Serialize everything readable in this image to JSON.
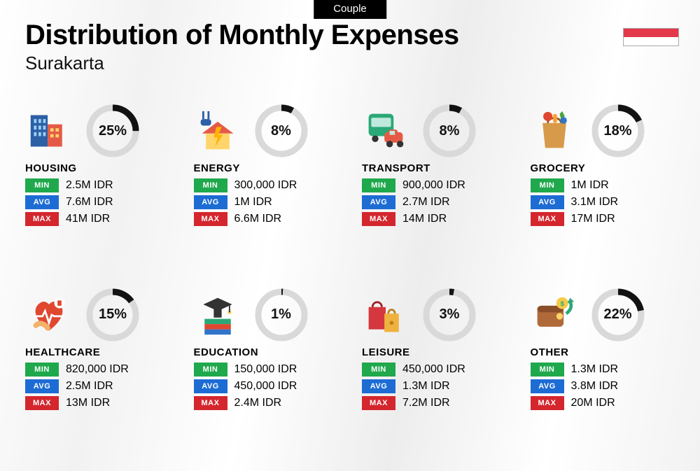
{
  "badge": "Couple",
  "title": "Distribution of Monthly Expenses",
  "subtitle": "Surakarta",
  "flag_colors": {
    "top": "#e3394a",
    "bottom": "#ffffff"
  },
  "tag_labels": {
    "min": "MIN",
    "avg": "AVG",
    "max": "MAX"
  },
  "tag_colors": {
    "min": "#1fa84c",
    "avg": "#1c6cd4",
    "max": "#d4262d"
  },
  "donut": {
    "track_color": "#d9d9d9",
    "fill_color": "#121212",
    "stroke_width": 9
  },
  "categories": [
    {
      "key": "housing",
      "name": "HOUSING",
      "percent": 25,
      "percent_label": "25%",
      "min": "2.5M IDR",
      "avg": "7.6M IDR",
      "max": "41M IDR"
    },
    {
      "key": "energy",
      "name": "ENERGY",
      "percent": 8,
      "percent_label": "8%",
      "min": "300,000 IDR",
      "avg": "1M IDR",
      "max": "6.6M IDR"
    },
    {
      "key": "transport",
      "name": "TRANSPORT",
      "percent": 8,
      "percent_label": "8%",
      "min": "900,000 IDR",
      "avg": "2.7M IDR",
      "max": "14M IDR"
    },
    {
      "key": "grocery",
      "name": "GROCERY",
      "percent": 18,
      "percent_label": "18%",
      "min": "1M IDR",
      "avg": "3.1M IDR",
      "max": "17M IDR"
    },
    {
      "key": "healthcare",
      "name": "HEALTHCARE",
      "percent": 15,
      "percent_label": "15%",
      "min": "820,000 IDR",
      "avg": "2.5M IDR",
      "max": "13M IDR"
    },
    {
      "key": "education",
      "name": "EDUCATION",
      "percent": 1,
      "percent_label": "1%",
      "min": "150,000 IDR",
      "avg": "450,000 IDR",
      "max": "2.4M IDR"
    },
    {
      "key": "leisure",
      "name": "LEISURE",
      "percent": 3,
      "percent_label": "3%",
      "min": "450,000 IDR",
      "avg": "1.3M IDR",
      "max": "7.2M IDR"
    },
    {
      "key": "other",
      "name": "OTHER",
      "percent": 22,
      "percent_label": "22%",
      "min": "1.3M IDR",
      "avg": "3.8M IDR",
      "max": "20M IDR"
    }
  ]
}
